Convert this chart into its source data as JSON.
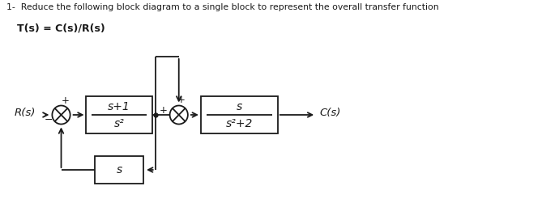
{
  "title_line1": "1-  Reduce the following block diagram to a single block to represent the overall transfer function",
  "title_line2": "T(s) = C(s)/R(s)",
  "bg_color": "#ffffff",
  "line_color": "#1a1a1a",
  "text_color": "#1a1a1a",
  "Rs_label": "R(s)",
  "Cs_label": "C(s)",
  "block1_top": "s+1",
  "block1_bot": "s²",
  "block2_top": "s",
  "block2_bot": "s²+2",
  "feedback_label": "s",
  "plus_sign": "+",
  "minus_sign": "−"
}
